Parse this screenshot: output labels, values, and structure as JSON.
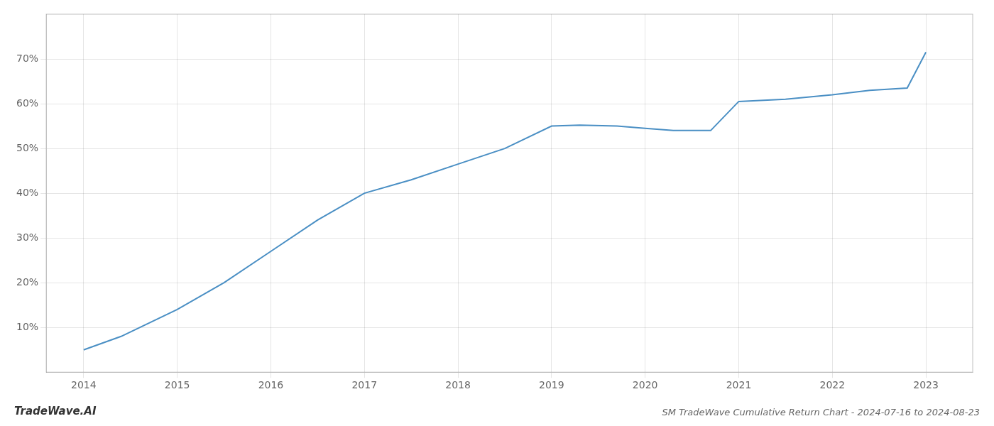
{
  "chart_data": {
    "type": "line",
    "title": "SM TradeWave Cumulative Return Chart - 2024-07-16 to 2024-08-23",
    "annotations": [
      "TradeWave.AI"
    ],
    "x": [
      2014.0,
      2014.4,
      2015.0,
      2015.5,
      2016.0,
      2016.5,
      2017.0,
      2017.5,
      2018.0,
      2018.5,
      2019.0,
      2019.3,
      2019.7,
      2020.0,
      2020.3,
      2020.7,
      2021.0,
      2021.5,
      2022.0,
      2022.4,
      2022.8,
      2023.0
    ],
    "values": [
      5.0,
      8.0,
      14.0,
      20.0,
      27.0,
      34.0,
      40.0,
      43.0,
      46.5,
      50.0,
      55.0,
      55.2,
      55.0,
      54.5,
      54.0,
      54.0,
      60.5,
      61.0,
      62.0,
      63.0,
      63.5,
      71.5
    ],
    "color": "#4a8fc4",
    "xlim": [
      2013.6,
      2023.5
    ],
    "ylim": [
      0,
      80
    ],
    "xticks": [
      2014,
      2015,
      2016,
      2017,
      2018,
      2019,
      2020,
      2021,
      2022,
      2023
    ],
    "yticks": [
      {
        "value": 10,
        "label": "10%"
      },
      {
        "value": 20,
        "label": "20%"
      },
      {
        "value": 30,
        "label": "30%"
      },
      {
        "value": 40,
        "label": "40%"
      },
      {
        "value": 50,
        "label": "50%"
      },
      {
        "value": 60,
        "label": "60%"
      },
      {
        "value": 70,
        "label": "70%"
      }
    ],
    "grid": true
  }
}
